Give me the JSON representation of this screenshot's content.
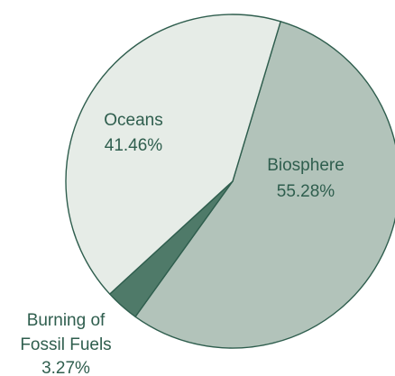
{
  "chart_data": {
    "type": "pie",
    "title": "",
    "slices": [
      {
        "label": "Biosphere",
        "value": 55.28,
        "value_label": "55.28%",
        "color": "#b2c3ba"
      },
      {
        "label": "Burning of Fossil Fuels",
        "label_lines": [
          "Burning of",
          "Fossil Fuels"
        ],
        "value": 3.27,
        "value_label": "3.27%",
        "color": "#4f7a69"
      },
      {
        "label": "Oceans",
        "value": 41.46,
        "value_label": "41.46%",
        "color": "#e6ece7"
      }
    ],
    "edge_color": "#2f5e4e",
    "label_color": "#2f5e4e"
  }
}
